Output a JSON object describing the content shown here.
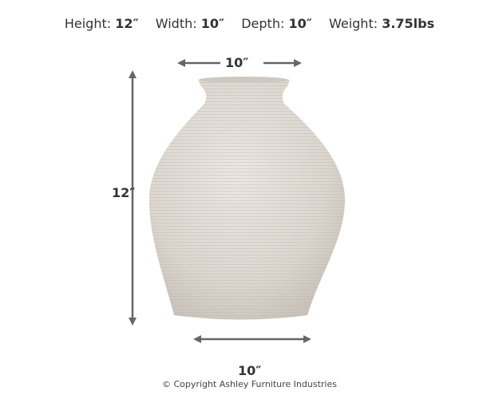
{
  "specs": [
    {
      "label": "Height:",
      "value": "12″"
    },
    {
      "label": "Width:",
      "value": "10″"
    },
    {
      "label": "Depth:",
      "value": "10″"
    },
    {
      "label": "Weight:",
      "value": "3.75lbs"
    }
  ],
  "dimensions": {
    "top_width": "10″",
    "height": "12″",
    "bottom_width": "10″"
  },
  "copyright": "© Copyright Ashley Furniture Industries",
  "colors": {
    "arrow": "#666666",
    "vase": "#dcd6cf",
    "text": "#333333"
  }
}
